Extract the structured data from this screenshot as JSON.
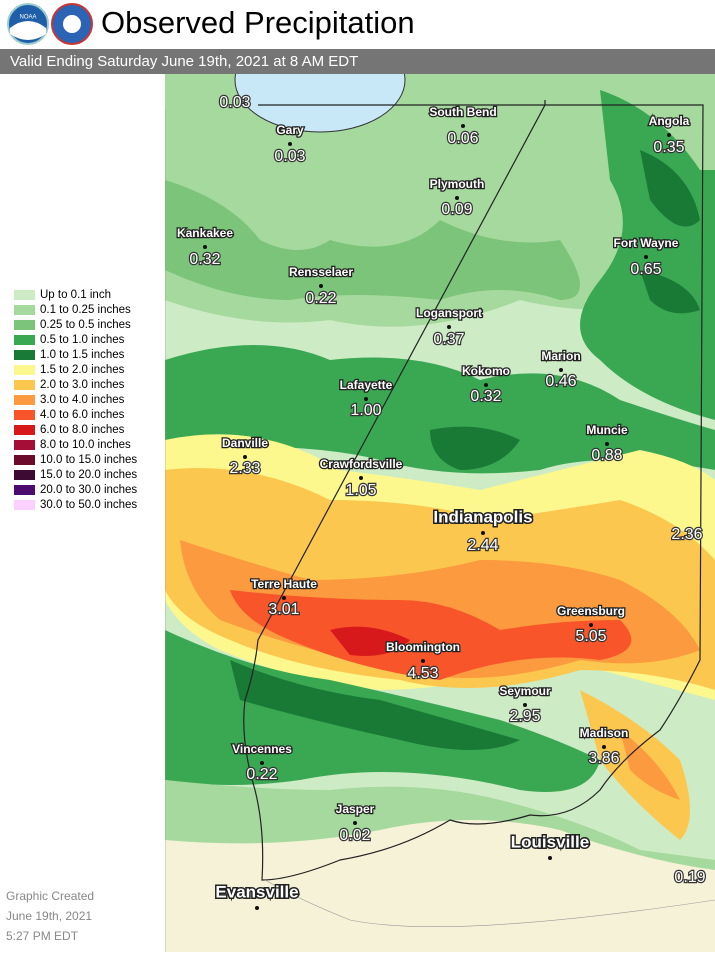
{
  "header": {
    "logo_text": "NOAA",
    "title": "Observed Precipitation",
    "subtitle": "Valid Ending Saturday June 19th, 2021 at 8 AM EDT"
  },
  "legend": [
    {
      "label": "Up to 0.1 inch",
      "color": "#cdebc5"
    },
    {
      "label": "0.1 to 0.25 inches",
      "color": "#a6d99e"
    },
    {
      "label": "0.25 to 0.5 inches",
      "color": "#7cc47a"
    },
    {
      "label": "0.5 to 1.0 inches",
      "color": "#3aa853"
    },
    {
      "label": "1.0 to 1.5 inches",
      "color": "#187a35"
    },
    {
      "label": "1.5 to 2.0 inches",
      "color": "#fdf88e"
    },
    {
      "label": "2.0 to 3.0 inches",
      "color": "#fcc74f"
    },
    {
      "label": "3.0 to 4.0 inches",
      "color": "#fb9a3e"
    },
    {
      "label": "4.0 to 6.0 inches",
      "color": "#f9552b"
    },
    {
      "label": "6.0 to 8.0 inches",
      "color": "#d7191c"
    },
    {
      "label": "8.0 to 10.0 inches",
      "color": "#a50f37"
    },
    {
      "label": "10.0 to 15.0 inches",
      "color": "#6b0a2a"
    },
    {
      "label": "15.0 to 20.0 inches",
      "color": "#3c0a32"
    },
    {
      "label": "20.0 to 30.0 inches",
      "color": "#4d0a6f"
    },
    {
      "label": "30.0 to 50.0 inches",
      "color": "#fcd0fc"
    }
  ],
  "cities": [
    {
      "value": "0.03"
    },
    {
      "name": "Gary",
      "value": "0.03"
    },
    {
      "name": "South Bend",
      "value": "0.06"
    },
    {
      "name": "Angola",
      "value": "0.35"
    },
    {
      "name": "Plymouth",
      "value": "0.09"
    },
    {
      "name": "Kankakee",
      "value": "0.32"
    },
    {
      "name": "Fort Wayne",
      "value": "0.65"
    },
    {
      "name": "Rensselaer",
      "value": "0.22"
    },
    {
      "name": "Logansport",
      "value": "0.37"
    },
    {
      "name": "Marion",
      "value": "0.46"
    },
    {
      "name": "Kokomo",
      "value": "0.32"
    },
    {
      "name": "Lafayette",
      "value": "1.00"
    },
    {
      "name": "Muncie",
      "value": "0.88"
    },
    {
      "name": "Danville",
      "value": "2.33"
    },
    {
      "name": "Crawfordsville",
      "value": "1.05"
    },
    {
      "name": "Indianapolis",
      "value": "2.44"
    },
    {
      "value": "2.36"
    },
    {
      "name": "Terre Haute",
      "value": "3.01"
    },
    {
      "name": "Greensburg",
      "value": "5.05"
    },
    {
      "name": "Bloomington",
      "value": "4.53"
    },
    {
      "name": "Seymour",
      "value": "2.95"
    },
    {
      "name": "Madison",
      "value": "3.86"
    },
    {
      "name": "Vincennes",
      "value": "0.22"
    },
    {
      "name": "Jasper",
      "value": "0.02"
    },
    {
      "name": "Louisville"
    },
    {
      "name": "Evansville"
    },
    {
      "value": "0.19"
    }
  ],
  "footer": [
    "Graphic Created",
    "June 19th, 2021",
    "5:27 PM EDT"
  ]
}
